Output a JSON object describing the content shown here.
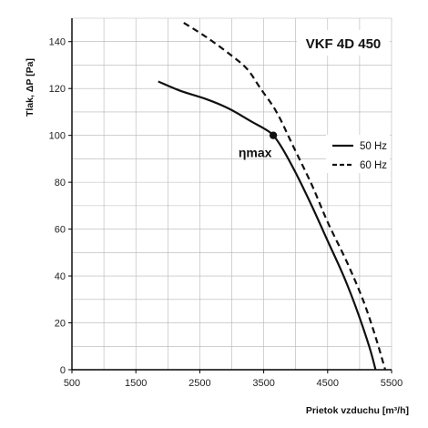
{
  "chart_data": {
    "type": "line",
    "title": "VKF 4D 450",
    "xlabel": "Prietok vzduchu",
    "xlabel_unit": "[m³/h]",
    "ylabel": "Tlak, ΔP [Pa]",
    "xlim": [
      500,
      5500
    ],
    "ylim": [
      0,
      150
    ],
    "x_ticks": [
      500,
      1500,
      2500,
      3500,
      4500,
      5500
    ],
    "x_tick_labels": [
      "500",
      "1500",
      "2500",
      "3500",
      "4500",
      "5500"
    ],
    "y_ticks": [
      0,
      20,
      40,
      60,
      80,
      100,
      120,
      140
    ],
    "y_tick_labels": [
      "0",
      "20",
      "40",
      "60",
      "80",
      "100",
      "120",
      "140"
    ],
    "grid": true,
    "legend_position": "right",
    "series": [
      {
        "name": "50 Hz",
        "style": "solid",
        "x": [
          1850,
          2200,
          2600,
          2950,
          3300,
          3500,
          3650,
          3800,
          4000,
          4250,
          4500,
          4750,
          4950,
          5150,
          5250
        ],
        "y": [
          123,
          119,
          115.5,
          111.5,
          106,
          103,
          100,
          94,
          84,
          70,
          55,
          40,
          26,
          10,
          0
        ]
      },
      {
        "name": "60 Hz",
        "style": "dashed",
        "x": [
          2250,
          2600,
          3000,
          3250,
          3450,
          3700,
          3950,
          4250,
          4500,
          4800,
          5050,
          5250,
          5400
        ],
        "y": [
          148,
          142,
          134,
          128,
          120,
          110,
          96,
          79,
          63,
          46,
          30,
          14,
          0
        ]
      }
    ],
    "annotations": [
      {
        "text": "ηmax",
        "x": 3650,
        "y": 100
      }
    ]
  }
}
